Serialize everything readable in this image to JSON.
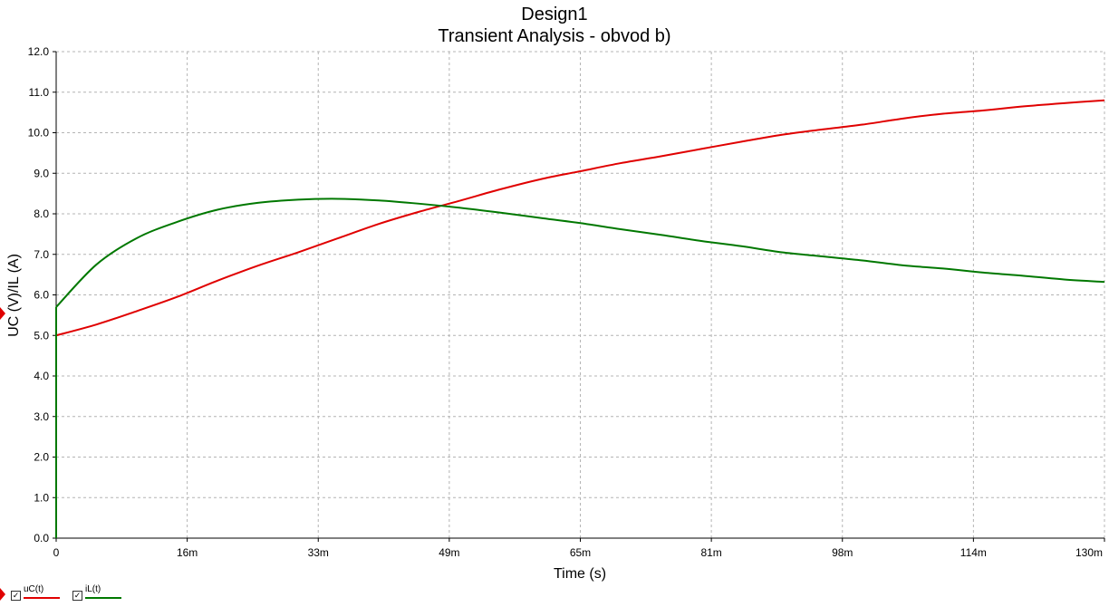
{
  "chart_data": {
    "type": "line",
    "title": "Design1",
    "subtitle": "Transient Analysis - obvod b)",
    "xlabel": "Time (s)",
    "ylabel": "UC (V)/IL (A)",
    "xlim": [
      0,
      0.13
    ],
    "ylim": [
      0,
      12
    ],
    "grid": true,
    "x_ticks": [
      {
        "value": 0,
        "label": "0"
      },
      {
        "value": 0.01625,
        "label": "16m"
      },
      {
        "value": 0.0325,
        "label": "33m"
      },
      {
        "value": 0.04875,
        "label": "49m"
      },
      {
        "value": 0.065,
        "label": "65m"
      },
      {
        "value": 0.08125,
        "label": "81m"
      },
      {
        "value": 0.0975,
        "label": "98m"
      },
      {
        "value": 0.11375,
        "label": "114m"
      },
      {
        "value": 0.13,
        "label": "130m"
      }
    ],
    "y_ticks": [
      {
        "value": 0,
        "label": "0.0"
      },
      {
        "value": 1,
        "label": "1.0"
      },
      {
        "value": 2,
        "label": "2.0"
      },
      {
        "value": 3,
        "label": "3.0"
      },
      {
        "value": 4,
        "label": "4.0"
      },
      {
        "value": 5,
        "label": "5.0"
      },
      {
        "value": 6,
        "label": "6.0"
      },
      {
        "value": 7,
        "label": "7.0"
      },
      {
        "value": 8,
        "label": "8.0"
      },
      {
        "value": 9,
        "label": "9.0"
      },
      {
        "value": 10,
        "label": "10.0"
      },
      {
        "value": 11,
        "label": "11.0"
      },
      {
        "value": 12,
        "label": "12.0"
      }
    ],
    "legend_position": "bottom-left",
    "series": [
      {
        "name": "uC(t)",
        "color": "#e00000",
        "x": [
          0,
          0.005,
          0.01,
          0.015,
          0.02,
          0.025,
          0.03,
          0.035,
          0.04,
          0.045,
          0.05,
          0.055,
          0.06,
          0.065,
          0.07,
          0.075,
          0.08,
          0.085,
          0.09,
          0.095,
          0.1,
          0.105,
          0.11,
          0.115,
          0.12,
          0.125,
          0.13
        ],
        "y": [
          5.0,
          5.27,
          5.6,
          5.95,
          6.35,
          6.72,
          7.05,
          7.4,
          7.75,
          8.05,
          8.32,
          8.6,
          8.85,
          9.05,
          9.25,
          9.42,
          9.6,
          9.78,
          9.95,
          10.08,
          10.2,
          10.35,
          10.47,
          10.55,
          10.65,
          10.73,
          10.8
        ]
      },
      {
        "name": "iL(t)",
        "color": "#007800",
        "x": [
          0,
          0.005,
          0.01,
          0.015,
          0.02,
          0.025,
          0.03,
          0.035,
          0.04,
          0.045,
          0.05,
          0.055,
          0.06,
          0.065,
          0.07,
          0.075,
          0.08,
          0.085,
          0.09,
          0.095,
          0.1,
          0.105,
          0.11,
          0.115,
          0.12,
          0.125,
          0.13
        ],
        "y": [
          5.7,
          6.75,
          7.4,
          7.8,
          8.1,
          8.27,
          8.35,
          8.37,
          8.33,
          8.25,
          8.15,
          8.03,
          7.9,
          7.77,
          7.62,
          7.48,
          7.33,
          7.2,
          7.05,
          6.95,
          6.85,
          6.73,
          6.65,
          6.55,
          6.47,
          6.38,
          6.32
        ]
      }
    ]
  }
}
